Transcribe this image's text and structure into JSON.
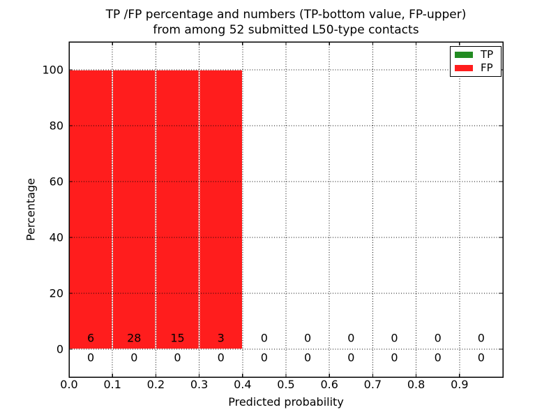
{
  "figure": {
    "title_line1": "TP /FP percentage and numbers (TP-bottom value, FP-upper)",
    "title_line2": "from among 52 submitted L50-type contacts",
    "xlabel": "Predicted probability",
    "ylabel": "Percentage"
  },
  "legend": {
    "items": [
      {
        "label": "TP",
        "color": "#228b22"
      },
      {
        "label": "FP",
        "color": "#ff1d1d"
      }
    ]
  },
  "chart_data": {
    "type": "bar",
    "title": "TP /FP percentage and numbers (TP-bottom value, FP-upper) from among 52 submitted L50-type contacts",
    "xlabel": "Predicted probability",
    "ylabel": "Percentage",
    "total_submitted_contacts": 52,
    "contact_type": "L50",
    "xlim": [
      0.0,
      1.0
    ],
    "ylim": [
      -10,
      110
    ],
    "xticks": [
      0.0,
      0.1,
      0.2,
      0.3,
      0.4,
      0.5,
      0.6,
      0.7,
      0.8,
      0.9
    ],
    "yticks": [
      0,
      20,
      40,
      60,
      80,
      100
    ],
    "grid": true,
    "grid_style": "dotted",
    "legend_position": "upper right",
    "bin_edges": [
      0.0,
      0.1,
      0.2,
      0.3,
      0.4,
      0.5,
      0.6,
      0.7,
      0.8,
      0.9,
      1.0
    ],
    "series": [
      {
        "name": "TP",
        "color": "#228b22",
        "percent": [
          0,
          0,
          0,
          0,
          0,
          0,
          0,
          0,
          0,
          0
        ],
        "counts": [
          0,
          0,
          0,
          0,
          0,
          0,
          0,
          0,
          0,
          0
        ],
        "count_label_value_y": -3
      },
      {
        "name": "FP",
        "color": "#ff1d1d",
        "percent": [
          100,
          100,
          100,
          100,
          0,
          0,
          0,
          0,
          0,
          0
        ],
        "counts": [
          6,
          28,
          15,
          3,
          0,
          0,
          0,
          0,
          0,
          0
        ],
        "count_label_value_y": 4
      }
    ],
    "colors": {
      "axis": "#000000",
      "grid": "#000000",
      "bar_edge": "#ffffff",
      "background": "#ffffff"
    }
  }
}
